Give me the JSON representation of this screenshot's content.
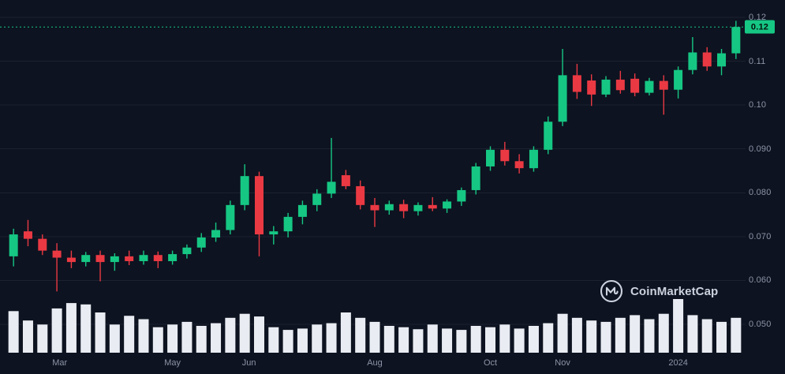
{
  "theme": {
    "background": "#0d1320",
    "grid_color": "#1c2230",
    "axis_text_color": "#8d94a7",
    "candle_up_color": "#16c784",
    "candle_down_color": "#ea3943",
    "volume_bar_color": "#e9ecf2",
    "price_line_color": "#16c784",
    "watermark_color": "#ccd2de"
  },
  "watermark": {
    "text": "CoinMarketCap"
  },
  "chart_data": {
    "type": "candlestick",
    "interval": "1W",
    "title": "",
    "ylim": [
      0.05,
      0.12
    ],
    "grid": "horizontal",
    "current_price_label": "0.12",
    "current_price_value": 0.1178,
    "y_ticks": [
      {
        "text": "0.12",
        "value": 0.12
      },
      {
        "text": "0.11",
        "value": 0.11
      },
      {
        "text": "0.10",
        "value": 0.1
      },
      {
        "text": "0.090",
        "value": 0.09
      },
      {
        "text": "0.080",
        "value": 0.08
      },
      {
        "text": "0.070",
        "value": 0.07
      },
      {
        "text": "0.060",
        "value": 0.06
      },
      {
        "text": "0.050",
        "value": 0.05
      }
    ],
    "x_ticks": [
      {
        "text": "Mar",
        "pos": 3.2
      },
      {
        "text": "May",
        "pos": 11
      },
      {
        "text": "Jun",
        "pos": 16.3
      },
      {
        "text": "Aug",
        "pos": 25
      },
      {
        "text": "Oct",
        "pos": 33
      },
      {
        "text": "Nov",
        "pos": 38
      },
      {
        "text": "2024",
        "pos": 46
      }
    ],
    "candles": [
      [
        0.0655,
        0.0718,
        0.0632,
        0.0705
      ],
      [
        0.0712,
        0.0738,
        0.0678,
        0.0695
      ],
      [
        0.0695,
        0.0705,
        0.0658,
        0.0668
      ],
      [
        0.0668,
        0.0685,
        0.0575,
        0.0652
      ],
      [
        0.0652,
        0.0668,
        0.0628,
        0.0642
      ],
      [
        0.0642,
        0.0665,
        0.0632,
        0.0658
      ],
      [
        0.0658,
        0.0668,
        0.0598,
        0.0642
      ],
      [
        0.0642,
        0.0662,
        0.0622,
        0.0655
      ],
      [
        0.0655,
        0.0668,
        0.0635,
        0.0644
      ],
      [
        0.0644,
        0.0668,
        0.0636,
        0.0658
      ],
      [
        0.0658,
        0.0666,
        0.0628,
        0.0644
      ],
      [
        0.0644,
        0.0668,
        0.0636,
        0.066
      ],
      [
        0.066,
        0.0682,
        0.065,
        0.0675
      ],
      [
        0.0675,
        0.0708,
        0.0665,
        0.0698
      ],
      [
        0.0698,
        0.0732,
        0.0688,
        0.0715
      ],
      [
        0.0715,
        0.0782,
        0.0705,
        0.0772
      ],
      [
        0.0772,
        0.0865,
        0.076,
        0.0838
      ],
      [
        0.0838,
        0.0848,
        0.0655,
        0.0705
      ],
      [
        0.0705,
        0.0724,
        0.0682,
        0.0712
      ],
      [
        0.0712,
        0.0754,
        0.0698,
        0.0745
      ],
      [
        0.0745,
        0.0782,
        0.0728,
        0.0772
      ],
      [
        0.0772,
        0.0808,
        0.0758,
        0.0798
      ],
      [
        0.0798,
        0.0925,
        0.0788,
        0.0825
      ],
      [
        0.084,
        0.0852,
        0.0808,
        0.0815
      ],
      [
        0.0815,
        0.0828,
        0.0762,
        0.0772
      ],
      [
        0.0772,
        0.0788,
        0.0722,
        0.076
      ],
      [
        0.076,
        0.0782,
        0.075,
        0.0774
      ],
      [
        0.0774,
        0.0784,
        0.0742,
        0.0758
      ],
      [
        0.0758,
        0.0778,
        0.0748,
        0.0772
      ],
      [
        0.0772,
        0.079,
        0.0758,
        0.0764
      ],
      [
        0.0764,
        0.0785,
        0.0754,
        0.078
      ],
      [
        0.078,
        0.0812,
        0.077,
        0.0806
      ],
      [
        0.0806,
        0.0868,
        0.0796,
        0.086
      ],
      [
        0.086,
        0.0906,
        0.085,
        0.0898
      ],
      [
        0.0898,
        0.0916,
        0.0862,
        0.0872
      ],
      [
        0.0872,
        0.0888,
        0.0844,
        0.0856
      ],
      [
        0.0856,
        0.0906,
        0.0848,
        0.0898
      ],
      [
        0.0898,
        0.0974,
        0.0888,
        0.0962
      ],
      [
        0.0962,
        0.1128,
        0.0952,
        0.1068
      ],
      [
        0.1068,
        0.1094,
        0.1014,
        0.103
      ],
      [
        0.1056,
        0.107,
        0.0998,
        0.1024
      ],
      [
        0.1024,
        0.1066,
        0.1018,
        0.1058
      ],
      [
        0.1058,
        0.1078,
        0.1026,
        0.1034
      ],
      [
        0.106,
        0.1072,
        0.102,
        0.1028
      ],
      [
        0.1028,
        0.1062,
        0.1022,
        0.1055
      ],
      [
        0.1055,
        0.1068,
        0.0978,
        0.1035
      ],
      [
        0.1035,
        0.1088,
        0.1015,
        0.108
      ],
      [
        0.108,
        0.1155,
        0.107,
        0.112
      ],
      [
        0.112,
        0.1132,
        0.1078,
        0.1088
      ],
      [
        0.1088,
        0.1128,
        0.1068,
        0.1118
      ],
      [
        0.1118,
        0.1192,
        0.1105,
        0.1178
      ]
    ],
    "volume": [
      62,
      48,
      42,
      66,
      74,
      72,
      60,
      42,
      55,
      50,
      38,
      42,
      46,
      40,
      44,
      52,
      58,
      54,
      38,
      34,
      36,
      42,
      44,
      60,
      52,
      46,
      40,
      38,
      35,
      42,
      36,
      34,
      40,
      38,
      42,
      36,
      40,
      44,
      58,
      52,
      48,
      46,
      52,
      56,
      50,
      58,
      80,
      56,
      50,
      46,
      52
    ],
    "volume_units": "relative-0-100"
  }
}
